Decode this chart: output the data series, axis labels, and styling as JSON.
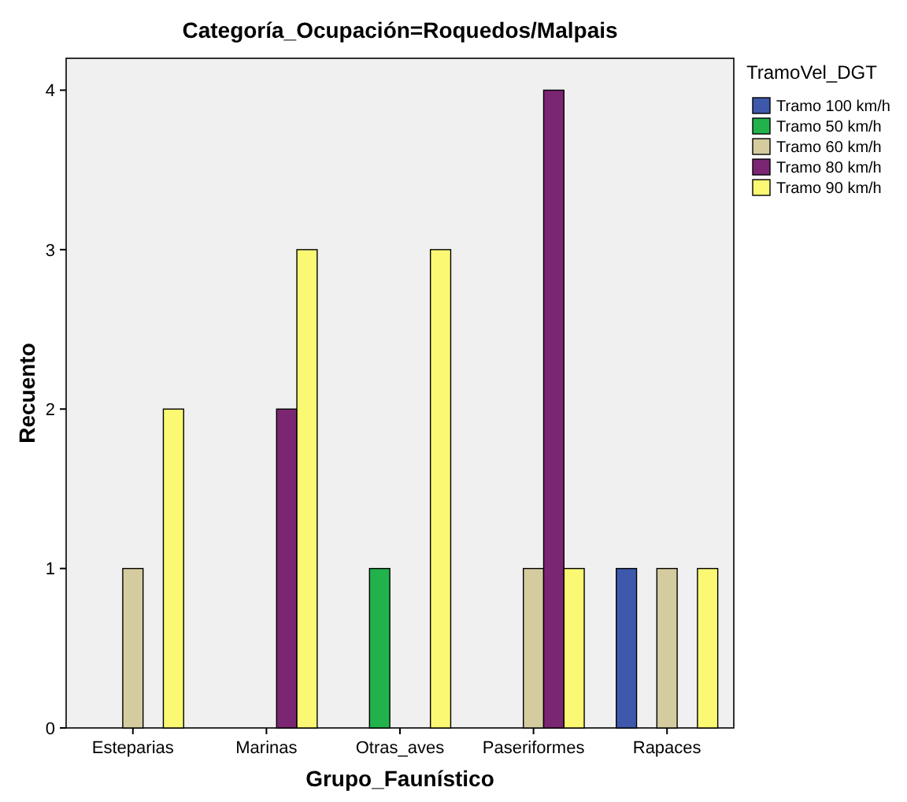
{
  "chart_data": {
    "type": "bar",
    "title": "Categoría_Ocupación=Roquedos/Malpais",
    "xlabel": "Grupo_Faunístico",
    "ylabel": "Recuento",
    "legend_title": "TramoVel_DGT",
    "legend": "right",
    "grid": false,
    "categories": [
      "Esteparias",
      "Marinas",
      "Otras_aves",
      "Paseriformes",
      "Rapaces"
    ],
    "series": [
      {
        "name": "Tramo 100 km/h",
        "color": "#3e58ac",
        "values": [
          null,
          null,
          null,
          null,
          1
        ]
      },
      {
        "name": "Tramo 50 km/h",
        "color": "#22b24c",
        "values": [
          null,
          null,
          1,
          null,
          null
        ]
      },
      {
        "name": "Tramo 60 km/h",
        "color": "#d4cc9f",
        "values": [
          1,
          null,
          null,
          1,
          1
        ]
      },
      {
        "name": "Tramo 80 km/h",
        "color": "#7b2672",
        "values": [
          null,
          2,
          null,
          4,
          null
        ]
      },
      {
        "name": "Tramo 90 km/h",
        "color": "#fbf873",
        "values": [
          2,
          3,
          3,
          1,
          1
        ]
      }
    ],
    "ylim": [
      0,
      4.2
    ],
    "yticks": [
      0,
      1,
      2,
      3,
      4
    ]
  }
}
